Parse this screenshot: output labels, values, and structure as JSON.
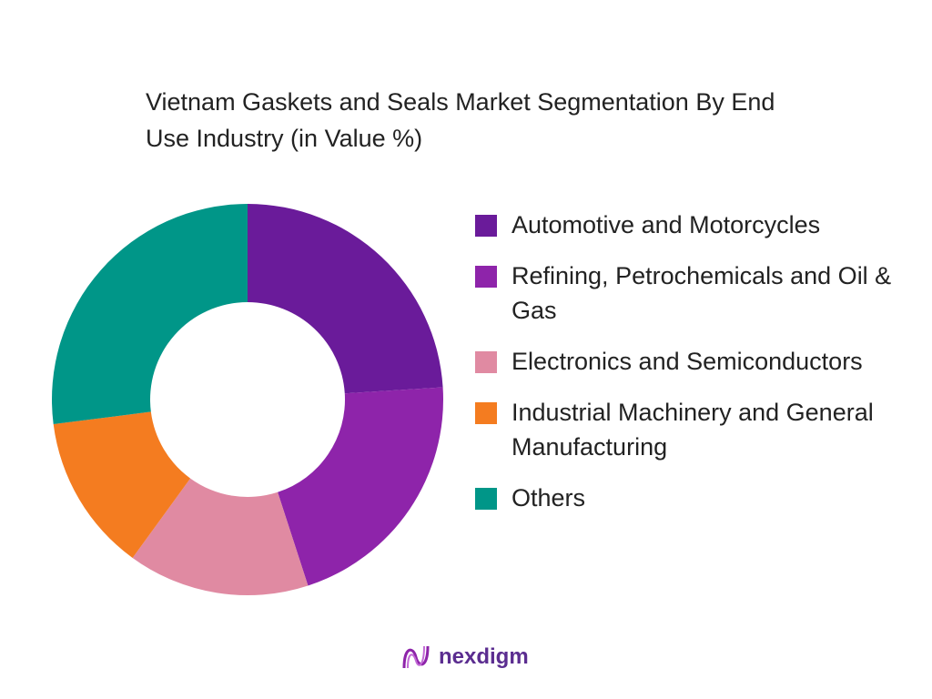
{
  "chart_data": {
    "type": "donut",
    "title": "Vietnam Gaskets and Seals Market Segmentation By End Use Industry (in Value %)",
    "categories": [
      "Automotive and Motorcycles",
      "Refining, Petrochemicals and Oil & Gas",
      "Electronics and Semiconductors",
      "Industrial Machinery and General Manufacturing",
      "Others"
    ],
    "values": [
      24,
      21,
      15,
      13,
      27
    ],
    "colors": [
      "#6a1b9a",
      "#8e24aa",
      "#e08aa2",
      "#f47c20",
      "#009688"
    ]
  },
  "footer": {
    "brand": "nexdigm"
  }
}
